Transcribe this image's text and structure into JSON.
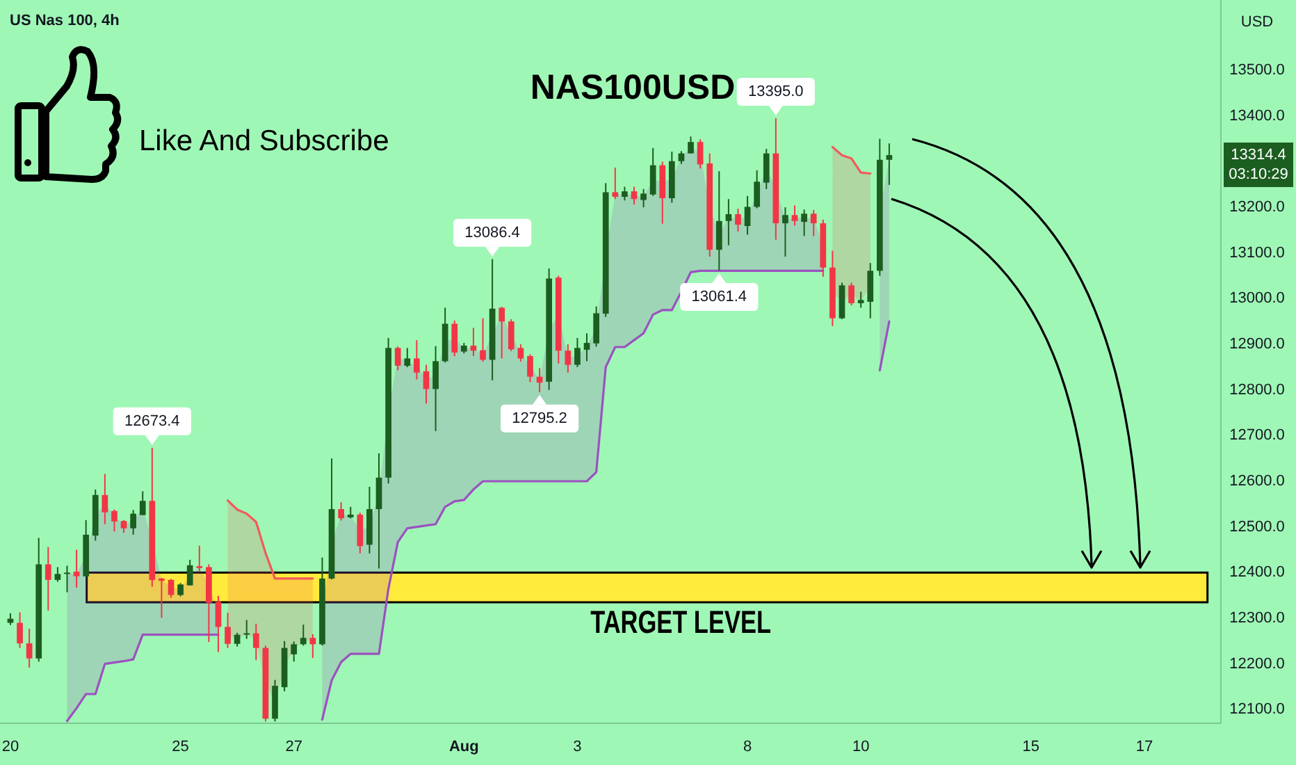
{
  "chart_data": {
    "type": "candlestick",
    "title": "NAS100USD",
    "subtitle": "US Nas 100, 4h",
    "ylabel": "USD",
    "categories": [
      "20",
      null,
      null,
      null,
      null,
      null,
      null,
      null,
      null,
      null,
      null,
      null,
      null,
      null,
      null,
      null,
      null,
      null,
      "25",
      null,
      null,
      null,
      null,
      null,
      null,
      null,
      null,
      null,
      null,
      null,
      "27",
      null,
      null,
      null,
      null,
      null,
      null,
      null,
      null,
      null,
      null,
      null,
      null,
      null,
      null,
      null,
      null,
      null,
      "Aug",
      null,
      null,
      null,
      null,
      null,
      null,
      null,
      null,
      null,
      null,
      null,
      "3",
      null,
      null,
      null,
      null,
      null,
      null,
      null,
      null,
      null,
      null,
      null,
      null,
      null,
      null,
      null,
      null,
      null,
      "8",
      null,
      null,
      null,
      null,
      null,
      null,
      null,
      null,
      null,
      null,
      null,
      "10",
      null,
      null,
      null,
      null,
      null,
      null,
      null,
      null,
      null,
      null,
      null,
      null,
      null,
      null,
      null,
      null,
      null,
      "15",
      null,
      null,
      null,
      null,
      null,
      null,
      null,
      null,
      null,
      null,
      null,
      "17",
      null,
      null,
      null,
      null,
      null,
      null,
      null
    ],
    "ohlc": [
      [
        12290,
        12311,
        12285,
        12299
      ],
      [
        12290,
        12313,
        12235,
        12245
      ],
      [
        12245,
        12277,
        12192,
        12212
      ],
      [
        12212,
        12476,
        12205,
        12418
      ],
      [
        12418,
        12456,
        12317,
        12384
      ],
      [
        12384,
        12412,
        12380,
        12397
      ],
      [
        12397,
        12415,
        12357,
        12400
      ],
      [
        12402,
        12450,
        12367,
        12392
      ],
      [
        12392,
        12515,
        12390,
        12483
      ],
      [
        12481,
        12582,
        12470,
        12570
      ],
      [
        12570,
        12616,
        12506,
        12532
      ],
      [
        12535,
        12538,
        12490,
        12512
      ],
      [
        12513,
        12515,
        12487,
        12497
      ],
      [
        12497,
        12537,
        12483,
        12529
      ],
      [
        12526,
        12578,
        12526,
        12557
      ],
      [
        12557,
        12673.4,
        12369,
        12384
      ],
      [
        12387,
        12388,
        12301,
        12382
      ],
      [
        12384,
        12386,
        12345,
        12351
      ],
      [
        12351,
        12377,
        12348,
        12374
      ],
      [
        12372,
        12428,
        12372,
        12416
      ],
      [
        12414,
        12459,
        12403,
        12410
      ],
      [
        12412,
        12418,
        12248,
        12334
      ],
      [
        12336,
        12349,
        12226,
        12281
      ],
      [
        12281,
        12312,
        12235,
        12244
      ],
      [
        12244,
        12268,
        12238,
        12264
      ],
      [
        12264,
        12296,
        12255,
        12267
      ],
      [
        12267,
        12288,
        12208,
        12235
      ],
      [
        12235,
        12240,
        12074,
        12080
      ],
      [
        12080,
        12165,
        12074,
        12152
      ],
      [
        12149,
        12250,
        12140,
        12235
      ],
      [
        12221,
        12249,
        12205,
        12243
      ],
      [
        12243,
        12286,
        12240,
        12257
      ],
      [
        12257,
        12265,
        12213,
        12243
      ],
      [
        12243,
        12433,
        12240,
        12387
      ],
      [
        12387,
        12650,
        12385,
        12539
      ],
      [
        12539,
        12554,
        12514,
        12519
      ],
      [
        12521,
        12544,
        12519,
        12527
      ],
      [
        12527,
        12531,
        12442,
        12458
      ],
      [
        12461,
        12588,
        12442,
        12539
      ],
      [
        12539,
        12661,
        12409,
        12608
      ],
      [
        12608,
        12914,
        12595,
        12892
      ],
      [
        12892,
        12895,
        12843,
        12853
      ],
      [
        12853,
        12892,
        12850,
        12869
      ],
      [
        12869,
        12909,
        12823,
        12838
      ],
      [
        12841,
        12855,
        12770,
        12802
      ],
      [
        12802,
        12896,
        12710,
        12863
      ],
      [
        12863,
        12980,
        12860,
        12945
      ],
      [
        12945,
        12952,
        12874,
        12882
      ],
      [
        12884,
        12903,
        12880,
        12897
      ],
      [
        12897,
        12936,
        12874,
        12886
      ],
      [
        12887,
        12957,
        12862,
        12866
      ],
      [
        12866,
        13086.4,
        12821,
        12978
      ],
      [
        12980,
        12982,
        12869,
        12950
      ],
      [
        12950,
        12955,
        12885,
        12889
      ],
      [
        12892,
        12900,
        12862,
        12869
      ],
      [
        12874,
        12878,
        12817,
        12829
      ],
      [
        12829,
        12848,
        12795.2,
        12816
      ],
      [
        12818,
        13066,
        12800,
        13044
      ],
      [
        13046,
        13050,
        12858,
        12886
      ],
      [
        12886,
        12900,
        12838,
        12855
      ],
      [
        12855,
        12914,
        12850,
        12892
      ],
      [
        12888,
        12924,
        12863,
        12903
      ],
      [
        12902,
        12983,
        12895,
        12968
      ],
      [
        12967,
        13253,
        12960,
        13233
      ],
      [
        13233,
        13287,
        13218,
        13223
      ],
      [
        13223,
        13245,
        13215,
        13235
      ],
      [
        13235,
        13245,
        13206,
        13218
      ],
      [
        13216,
        13240,
        13200,
        13230
      ],
      [
        13228,
        13330,
        13225,
        13292
      ],
      [
        13292,
        13300,
        13164,
        13220
      ],
      [
        13220,
        13322,
        13210,
        13301
      ],
      [
        13301,
        13323,
        13295,
        13318
      ],
      [
        13318,
        13355,
        13318,
        13343
      ],
      [
        13343,
        13349,
        13285,
        13294
      ],
      [
        13296,
        13318,
        13092,
        13107
      ],
      [
        13107,
        13279,
        13061.4,
        13170
      ],
      [
        13170,
        13218,
        13117,
        13185
      ],
      [
        13185,
        13197,
        13147,
        13162
      ],
      [
        13159,
        13225,
        13140,
        13201
      ],
      [
        13201,
        13281,
        13198,
        13256
      ],
      [
        13254,
        13328,
        13240,
        13318
      ],
      [
        13318,
        13395.0,
        13129,
        13165
      ],
      [
        13165,
        13200,
        13092,
        13183
      ],
      [
        13183,
        13204,
        13160,
        13170
      ],
      [
        13168,
        13195,
        13137,
        13186
      ],
      [
        13186,
        13194,
        13137,
        13165
      ],
      [
        13165,
        13173,
        13048,
        13068
      ],
      [
        13068,
        13105,
        12940,
        12957
      ],
      [
        12957,
        13035,
        12955,
        13029
      ],
      [
        13029,
        13035,
        12985,
        12990
      ],
      [
        12990,
        13015,
        12980,
        12997
      ],
      [
        12993,
        13078,
        12957,
        13061
      ],
      [
        13061,
        13350,
        13050,
        13304
      ],
      [
        13304,
        13340,
        13249,
        13314.4
      ],
      null,
      null,
      null,
      null,
      null,
      null,
      null,
      null,
      null,
      null,
      null,
      null,
      null,
      null,
      null,
      null,
      null,
      null,
      null,
      null,
      null,
      null,
      null,
      null,
      null,
      null,
      null,
      null,
      null,
      null,
      null,
      null,
      null,
      null
    ],
    "colors": [
      "#1b5e20",
      "#f23645",
      "#f23645",
      "#1b5e20",
      "#f23645",
      "#1b5e20",
      "#1b5e20",
      "#f23645",
      "#1b5e20",
      "#1b5e20",
      "#f23645",
      "#f23645",
      "#f23645",
      "#1b5e20",
      "#1b5e20",
      "#f23645",
      "#f23645",
      "#f23645",
      "#1b5e20",
      "#1b5e20",
      "#f23645",
      "#f23645",
      "#f23645",
      "#f23645",
      "#1b5e20",
      "#1b5e20",
      "#f23645",
      "#f23645",
      "#1b5e20",
      "#1b5e20",
      "#1b5e20",
      "#1b5e20",
      "#f23645",
      "#1b5e20",
      "#1b5e20",
      "#f23645",
      "#1b5e20",
      "#f23645",
      "#1b5e20",
      "#1b5e20",
      "#1b5e20",
      "#f23645",
      "#1b5e20",
      "#f23645",
      "#f23645",
      "#1b5e20",
      "#1b5e20",
      "#f23645",
      "#1b5e20",
      "#f23645",
      "#f23645",
      "#1b5e20",
      "#f23645",
      "#f23645",
      "#f23645",
      "#f23645",
      "#f23645",
      "#1b5e20",
      "#f23645",
      "#f23645",
      "#1b5e20",
      "#1b5e20",
      "#1b5e20",
      "#1b5e20",
      "#f23645",
      "#1b5e20",
      "#f23645",
      "#1b5e20",
      "#1b5e20",
      "#f23645",
      "#1b5e20",
      "#1b5e20",
      "#1b5e20",
      "#f23645",
      "#f23645",
      "#1b5e20",
      "#1b5e20",
      "#f23645",
      "#1b5e20",
      "#1b5e20",
      "#1b5e20",
      "#f23645",
      "#1b5e20",
      "#f23645",
      "#1b5e20",
      "#f23645",
      "#f23645",
      "#f23645",
      "#1b5e20",
      "#f23645",
      "#1b5e20",
      "#1b5e20",
      "#1b5e20",
      "#1b5e20",
      null,
      null,
      null,
      null,
      null,
      null,
      null,
      null,
      null,
      null,
      null,
      null,
      null,
      null,
      null,
      null,
      null,
      null,
      null,
      null,
      null,
      null,
      null,
      null,
      null,
      null,
      null,
      null,
      null,
      null,
      null,
      null,
      null,
      null
    ],
    "series": [
      {
        "type": "line",
        "color": "#9b51c0",
        "values": [
          null,
          null,
          null,
          null,
          null,
          null,
          12075,
          12103,
          12134,
          12134,
          12200,
          12203,
          12206,
          12210,
          12264,
          12264,
          12264,
          12264,
          12264,
          12264,
          12264,
          12264,
          12264,
          null,
          null,
          null,
          null,
          null,
          null,
          null,
          null,
          null,
          null,
          12078,
          12164,
          12204,
          12222,
          12222,
          12222,
          12222,
          12364,
          12467,
          12497,
          12500,
          12503,
          12506,
          12544,
          12556,
          12559,
          12582,
          12600,
          12600,
          12600,
          12600,
          12600,
          12600,
          12600,
          12600,
          12600,
          12600,
          12600,
          12600,
          12620,
          12850,
          12894,
          12894,
          12909,
          12924,
          12965,
          12975,
          12975,
          13015,
          13058,
          13061,
          13061,
          13061,
          13061,
          13061,
          13061,
          13061,
          13061,
          13061,
          13061,
          13061,
          13061,
          13061,
          13061,
          null,
          null,
          null,
          null,
          null,
          12843,
          12950,
          null,
          null,
          null,
          null,
          null,
          null,
          null,
          null,
          null,
          null,
          null,
          null,
          null,
          null,
          null,
          null,
          null,
          null,
          null,
          null,
          null,
          null,
          null,
          null,
          null,
          null,
          null,
          null,
          null,
          null,
          null,
          null,
          null,
          null
        ],
        "lower": [
          null,
          null,
          null,
          null,
          null,
          null,
          12075,
          12103,
          12134,
          12134,
          12200,
          12203,
          12206,
          12210,
          12264,
          12264,
          12264,
          12264,
          12264,
          12264,
          12264,
          12264,
          12264,
          null,
          null,
          null,
          null,
          null,
          null,
          null,
          null,
          null,
          null,
          12078,
          12164,
          12204,
          12222,
          12222,
          12222,
          12222,
          12364,
          12467,
          12497,
          12500,
          12503,
          12506,
          12544,
          12556,
          12559,
          12582,
          12600,
          12600,
          12600,
          12600,
          12600,
          12600,
          12600,
          12600,
          12600,
          12600,
          12600,
          12600,
          12620,
          12850,
          12894,
          12894,
          12909,
          12924,
          12965,
          12975,
          12975,
          13015,
          13058,
          13061,
          13061,
          13061,
          13061,
          13061,
          13061,
          13061,
          13061,
          13061,
          13061,
          13061,
          13061,
          13061,
          13061,
          null,
          null,
          null,
          null,
          null,
          12843,
          12950,
          null,
          null,
          null,
          null,
          null,
          null,
          null,
          null,
          null,
          null,
          null,
          null,
          null,
          null,
          null,
          null,
          null,
          null,
          null,
          null,
          null,
          null,
          null,
          null,
          null,
          null,
          null,
          null,
          null,
          null,
          null,
          null,
          null,
          null
        ],
        "upper": [
          null,
          null,
          null,
          null,
          null,
          null,
          12399,
          12397,
          12438,
          12526,
          12551,
          12524,
          12505,
          12513,
          12542,
          12471,
          12385,
          12368,
          12363,
          12394,
          12412,
          12373,
          12309,
          null,
          null,
          null,
          null,
          null,
          null,
          null,
          null,
          null,
          null,
          12315,
          12463,
          12529,
          12524,
          12493,
          12500,
          12574,
          12750,
          12873,
          12861,
          12854,
          12822,
          12833,
          12904,
          12914,
          12891,
          12892,
          12877,
          12922,
          12965,
          12920,
          12881,
          12852,
          12823,
          12931,
          12966,
          12871,
          12874,
          12896,
          12935,
          13100,
          13228,
          13229,
          13227,
          13223,
          13260,
          13256,
          13261,
          13310,
          13331,
          13319,
          13202,
          13139,
          13178,
          13174,
          13180,
          13229,
          13286,
          13242,
          13174,
          13177,
          13177,
          13176,
          13117,
          null,
          null,
          null,
          null,
          null,
          13183,
          13309,
          null,
          null,
          null,
          null,
          null,
          null,
          null,
          null,
          null,
          null,
          null,
          null,
          null,
          null,
          null,
          null,
          null,
          null,
          null,
          null,
          null,
          null,
          null,
          null,
          null,
          null,
          null,
          null,
          null,
          null,
          null,
          null,
          null,
          null
        ]
      },
      {
        "type": "line",
        "color": "#f05a5a",
        "values": [
          null,
          null,
          null,
          null,
          null,
          null,
          null,
          null,
          null,
          null,
          null,
          null,
          null,
          null,
          null,
          null,
          null,
          null,
          null,
          null,
          null,
          null,
          null,
          12558,
          12538,
          12529,
          12511,
          12443,
          12387,
          12387,
          12387,
          12387,
          12387,
          null,
          null,
          null,
          null,
          null,
          null,
          null,
          null,
          null,
          null,
          null,
          null,
          null,
          null,
          null,
          null,
          null,
          null,
          null,
          null,
          null,
          null,
          null,
          null,
          null,
          null,
          null,
          null,
          null,
          null,
          null,
          null,
          null,
          null,
          null,
          null,
          null,
          null,
          null,
          null,
          null,
          null,
          null,
          null,
          null,
          null,
          null,
          null,
          null,
          null,
          null,
          null,
          null,
          null,
          13332,
          13314,
          13307,
          13276,
          13274,
          null,
          null,
          null,
          null,
          null,
          null,
          null,
          null,
          null,
          null,
          null,
          null,
          null,
          null,
          null,
          null,
          null,
          null,
          null,
          null,
          null,
          null,
          null,
          null,
          null,
          null,
          null,
          null,
          null,
          null,
          null,
          null,
          null,
          null,
          null,
          null
        ],
        "lower": [
          null,
          null,
          null,
          null,
          null,
          null,
          null,
          null,
          null,
          null,
          null,
          null,
          null,
          null,
          null,
          null,
          null,
          null,
          null,
          null,
          null,
          null,
          null,
          12263,
          12254,
          12266,
          12251,
          12158,
          12116,
          12192,
          12232,
          12250,
          12250,
          null,
          null,
          null,
          null,
          null,
          null,
          null,
          null,
          null,
          null,
          null,
          null,
          null,
          null,
          null,
          null,
          null,
          null,
          null,
          null,
          null,
          null,
          null,
          null,
          null,
          null,
          null,
          null,
          null,
          null,
          null,
          null,
          null,
          null,
          null,
          null,
          null,
          null,
          null,
          null,
          null,
          null,
          null,
          null,
          null,
          null,
          null,
          null,
          null,
          null,
          null,
          null,
          null,
          null,
          13013,
          12993,
          13010,
          12994,
          13027,
          null,
          null,
          null,
          null,
          null,
          null,
          null,
          null,
          null,
          null,
          null,
          null,
          null,
          null,
          null,
          null,
          null,
          null,
          null,
          null,
          null,
          null,
          null,
          null,
          null,
          null,
          null,
          null,
          null,
          null,
          null,
          null,
          null,
          null,
          null,
          null
        ],
        "upper": [
          null,
          null,
          null,
          null,
          null,
          null,
          null,
          null,
          null,
          null,
          null,
          null,
          null,
          null,
          null,
          null,
          null,
          null,
          null,
          null,
          null,
          null,
          null,
          12558,
          12538,
          12529,
          12511,
          12443,
          12387,
          12387,
          12387,
          12387,
          12387,
          null,
          null,
          null,
          null,
          null,
          null,
          null,
          null,
          null,
          null,
          null,
          null,
          null,
          null,
          null,
          null,
          null,
          null,
          null,
          null,
          null,
          null,
          null,
          null,
          null,
          null,
          null,
          null,
          null,
          null,
          null,
          null,
          null,
          null,
          null,
          null,
          null,
          null,
          null,
          null,
          null,
          null,
          null,
          null,
          null,
          null,
          null,
          null,
          null,
          null,
          null,
          null,
          null,
          null,
          13332,
          13314,
          13307,
          13276,
          13274,
          null,
          null,
          null,
          null,
          null,
          null,
          null,
          null,
          null,
          null,
          null,
          null,
          null,
          null,
          null,
          null,
          null,
          null,
          null,
          null,
          null,
          null,
          null,
          null,
          null,
          null,
          null,
          null,
          null,
          null,
          null,
          null,
          null,
          null,
          null,
          null
        ]
      }
    ],
    "ylim": [
      12070,
      13654
    ],
    "yticks": [
      {
        "value": 12100,
        "label": "12100.0"
      },
      {
        "value": 12200,
        "label": "12200.0"
      },
      {
        "value": 12300,
        "label": "12300.0"
      },
      {
        "value": 12400,
        "label": "12400.0"
      },
      {
        "value": 12500,
        "label": "12500.0"
      },
      {
        "value": 12600,
        "label": "12600.0"
      },
      {
        "value": 12700,
        "label": "12700.0"
      },
      {
        "value": 12800,
        "label": "12800.0"
      },
      {
        "value": 12900,
        "label": "12900.0"
      },
      {
        "value": 13000,
        "label": "13000.0"
      },
      {
        "value": 13100,
        "label": "13100.0"
      },
      {
        "value": 13200,
        "label": "13200.0"
      },
      {
        "value": 13400,
        "label": "13400.0"
      },
      {
        "value": 13500,
        "label": "13500.0"
      }
    ],
    "bands": [
      {
        "axis": "y",
        "from": 12335,
        "to": 12400,
        "label": "TARGET LEVEL",
        "color": "#ffeb3b"
      }
    ],
    "annotations": [
      {
        "text": "12673.4",
        "y": 12673.4
      },
      {
        "text": "13086.4",
        "y": 13086.4
      },
      {
        "text": "12795.2",
        "y": 12795.2
      },
      {
        "text": "13395.0",
        "y": 13395.0
      },
      {
        "text": "13061.4",
        "y": 13061.4
      },
      "13314.4",
      "03:10:29",
      "Like And Subscribe"
    ]
  }
}
